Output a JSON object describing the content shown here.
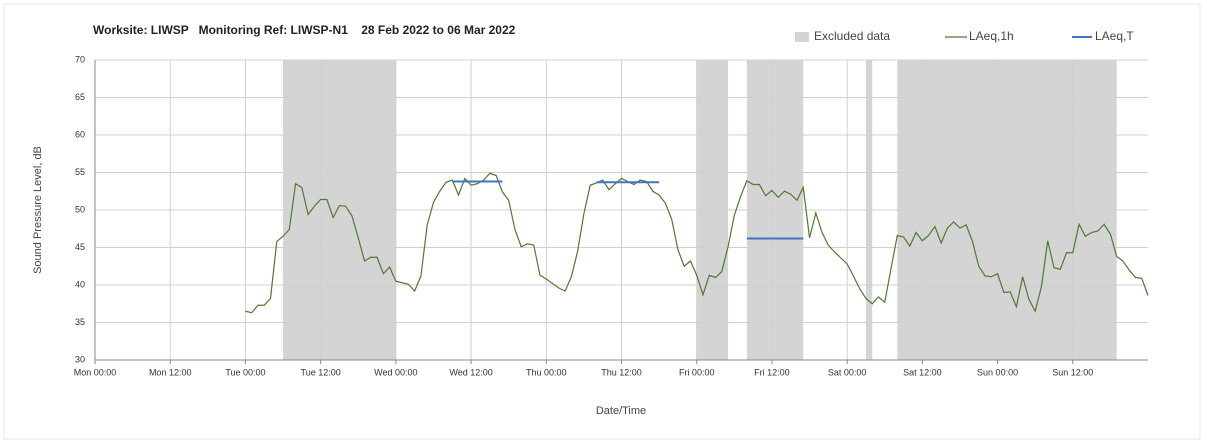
{
  "chart_data": {
    "type": "line",
    "title": "Worksite: LIWSP   Monitoring Ref: LIWSP-N1    28 Feb 2022 to 06 Mar 2022",
    "x_label": "Date/Time",
    "y_label": "Sound Pressure Level, dB",
    "xlim": [
      0,
      168
    ],
    "xticks": [
      {
        "value": 0,
        "label": "Mon 00:00"
      },
      {
        "value": 12,
        "label": "Mon 12:00"
      },
      {
        "value": 24,
        "label": "Tue 00:00"
      },
      {
        "value": 36,
        "label": "Tue 12:00"
      },
      {
        "value": 48,
        "label": "Wed 00:00"
      },
      {
        "value": 60,
        "label": "Wed 12:00"
      },
      {
        "value": 72,
        "label": "Thu 00:00"
      },
      {
        "value": 84,
        "label": "Thu 12:00"
      },
      {
        "value": 96,
        "label": "Fri 00:00"
      },
      {
        "value": 108,
        "label": "Fri 12:00"
      },
      {
        "value": 120,
        "label": "Sat 00:00"
      },
      {
        "value": 132,
        "label": "Sat 12:00"
      },
      {
        "value": 144,
        "label": "Sun 00:00"
      },
      {
        "value": 156,
        "label": "Sun 12:00"
      }
    ],
    "ylim": [
      30,
      70
    ],
    "yticks": [
      30,
      35,
      40,
      45,
      50,
      55,
      60,
      65,
      70
    ],
    "grid": true,
    "legend": "top-right",
    "excluded": {
      "name": "Excluded data",
      "color": "#d4d4d4",
      "ranges": [
        [
          30,
          48
        ],
        [
          96,
          101
        ],
        [
          104,
          113
        ],
        [
          123,
          124
        ],
        [
          128,
          163
        ]
      ]
    },
    "series": [
      {
        "name": "LAeq,1h",
        "color": "#4f7a2f",
        "x": [
          24,
          25,
          26,
          27,
          28,
          29,
          30,
          31,
          32,
          33,
          34,
          35,
          36,
          37,
          38,
          39,
          40,
          41,
          42,
          43,
          44,
          45,
          46,
          47,
          48,
          49,
          50,
          51,
          52,
          53,
          54,
          55,
          56,
          57,
          58,
          59,
          60,
          61,
          62,
          63,
          64,
          65,
          66,
          67,
          68,
          69,
          70,
          71,
          72,
          73,
          74,
          75,
          76,
          77,
          78,
          79,
          80,
          81,
          82,
          83,
          84,
          85,
          86,
          87,
          88,
          89,
          90,
          91,
          92,
          93,
          94,
          95,
          96,
          97,
          98,
          99,
          100,
          101,
          102,
          103,
          104,
          105,
          106,
          107,
          108,
          109,
          110,
          111,
          112,
          113,
          114,
          115,
          116,
          117,
          118,
          119,
          120,
          121,
          122,
          123,
          124,
          125,
          126,
          127,
          128,
          129,
          130,
          131,
          132,
          133,
          134,
          135,
          136,
          137,
          138,
          139,
          140,
          141,
          142,
          143,
          144,
          145,
          146,
          147,
          148,
          149,
          150,
          151,
          152,
          153,
          154,
          155,
          156,
          157,
          158,
          159,
          160,
          161,
          162,
          163,
          164,
          165,
          166,
          167,
          168
        ],
        "values": [
          36.5,
          36.3,
          37.3,
          37.3,
          38.2,
          45.8,
          46.5,
          47.4,
          53.5,
          53,
          49.4,
          50.5,
          51.4,
          51.4,
          49,
          50.6,
          50.5,
          49.2,
          46.3,
          43.2,
          43.7,
          43.7,
          41.5,
          42.4,
          40.5,
          40.3,
          40.1,
          39.2,
          41.2,
          48,
          51,
          52.5,
          53.7,
          54,
          52,
          54.2,
          53.3,
          53.5,
          54,
          54.9,
          54.6,
          52.4,
          51.3,
          47.4,
          45.1,
          45.5,
          45.3,
          41.3,
          40.8,
          40.2,
          39.6,
          39.2,
          41.1,
          44.5,
          49.5,
          53.3,
          53.6,
          54,
          52.7,
          53.5,
          54.2,
          53.8,
          53.4,
          54,
          53.8,
          52.5,
          52,
          50.9,
          48.8,
          44.7,
          42.5,
          43.2,
          41.3,
          38.7,
          41.3,
          41,
          41.8,
          45.1,
          49.3,
          51.8,
          53.9,
          53.4,
          53.4,
          51.9,
          52.6,
          51.7,
          52.5,
          52.1,
          51.3,
          53,
          46.3,
          49.6,
          47,
          45.3,
          44.4,
          43.6,
          42.8,
          41.2,
          39.5,
          38.2,
          37.5,
          38.4,
          37.7,
          42.2,
          46.6,
          46.4,
          45.2,
          47,
          45.9,
          46.6,
          47.8,
          45.6,
          47.6,
          48.4,
          47.6,
          48,
          45.8,
          42.5,
          41.2,
          41.1,
          41.5,
          39,
          39.1,
          37.1,
          41.1,
          38.1,
          36.5,
          39.8,
          45.9,
          42.3,
          42.1,
          44.3,
          44.3,
          48.1,
          46.5,
          47,
          47.2,
          48.1,
          46.8,
          43.8,
          43.2,
          42,
          41,
          40.9,
          38.6
        ]
      }
    ],
    "levels": {
      "name": "LAeq,T",
      "color": "#4472c4",
      "segments": [
        {
          "x": [
            57,
            65
          ],
          "value": 53.8
        },
        {
          "x": [
            80,
            90
          ],
          "value": 53.7
        },
        {
          "x": [
            104,
            113
          ],
          "value": 46.2
        }
      ]
    }
  }
}
